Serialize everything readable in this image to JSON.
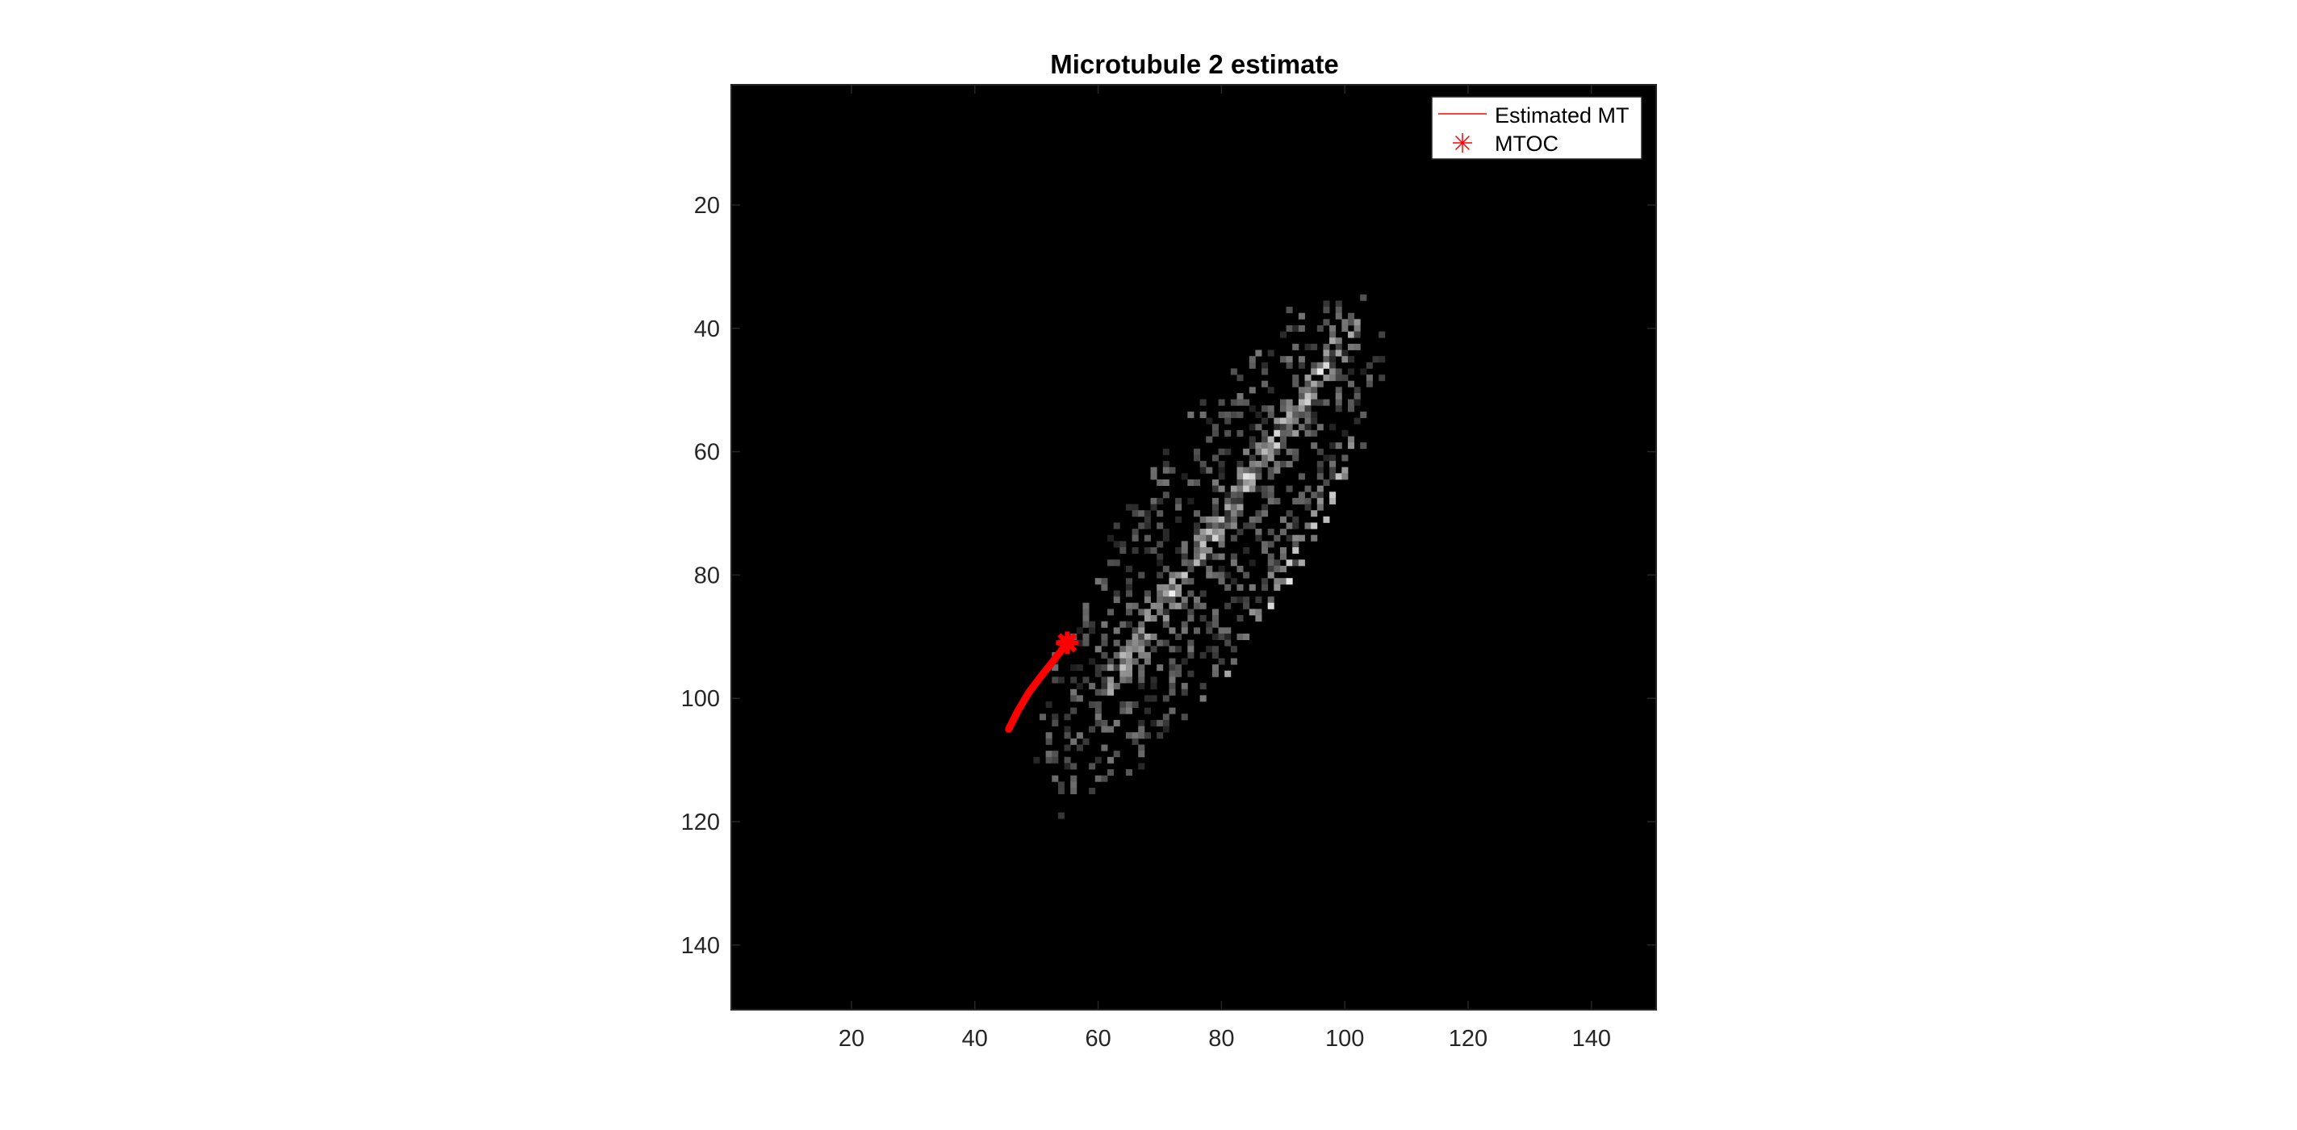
{
  "chart_data": {
    "type": "heatmap",
    "title": "Microtubule 2 estimate",
    "xlabel": "",
    "ylabel": "",
    "xlim": [
      0.5,
      150.5
    ],
    "ylim": [
      0.5,
      150.5
    ],
    "y_reversed": true,
    "colormap": "gray",
    "xticks": [
      20,
      40,
      60,
      80,
      100,
      120,
      140
    ],
    "yticks": [
      20,
      40,
      60,
      80,
      100,
      120,
      140
    ],
    "xtick_labels": [
      "20",
      "40",
      "60",
      "80",
      "100",
      "120",
      "140"
    ],
    "ytick_labels": [
      "20",
      "40",
      "60",
      "80",
      "100",
      "120",
      "140"
    ],
    "image_description": {
      "object": "elongated elliptical cell body of sparse grey pixels",
      "ellipse_center": [
        78,
        75
      ],
      "ellipse_semi_axes": [
        48,
        14
      ],
      "major_axis_angle_deg_from_x_toward_increasing_y": -58,
      "bright_ridges": [
        {
          "from": [
            101,
            40
          ],
          "to": [
            62,
            98
          ]
        },
        {
          "from": [
            102,
            60
          ],
          "to": [
            73,
            112
          ]
        }
      ]
    },
    "series": [
      {
        "name": "Estimated MT",
        "type": "line",
        "color": "#ff0000",
        "x": [
          45.5,
          47.0,
          48.8,
          50.7,
          52.5,
          54.0,
          55.0
        ],
        "y": [
          105.0,
          102.0,
          99.0,
          96.5,
          94.2,
          92.3,
          91.0
        ]
      },
      {
        "name": "MTOC",
        "type": "scatter",
        "marker": "asterisk",
        "color": "#ff0000",
        "x": [
          55
        ],
        "y": [
          91
        ]
      }
    ],
    "legend": {
      "position": "top-right",
      "entries": [
        "Estimated MT",
        "MTOC"
      ]
    },
    "grid": false
  }
}
